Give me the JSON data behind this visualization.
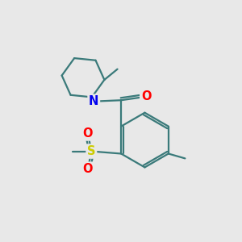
{
  "bg_color": "#e8e8e8",
  "bond_color": "#3a7a7a",
  "bond_width": 1.6,
  "atom_colors": {
    "N": "#0000ee",
    "O": "#ff0000",
    "S": "#cccc00",
    "C": "#3a7a7a"
  },
  "font_size_atom": 10.5
}
